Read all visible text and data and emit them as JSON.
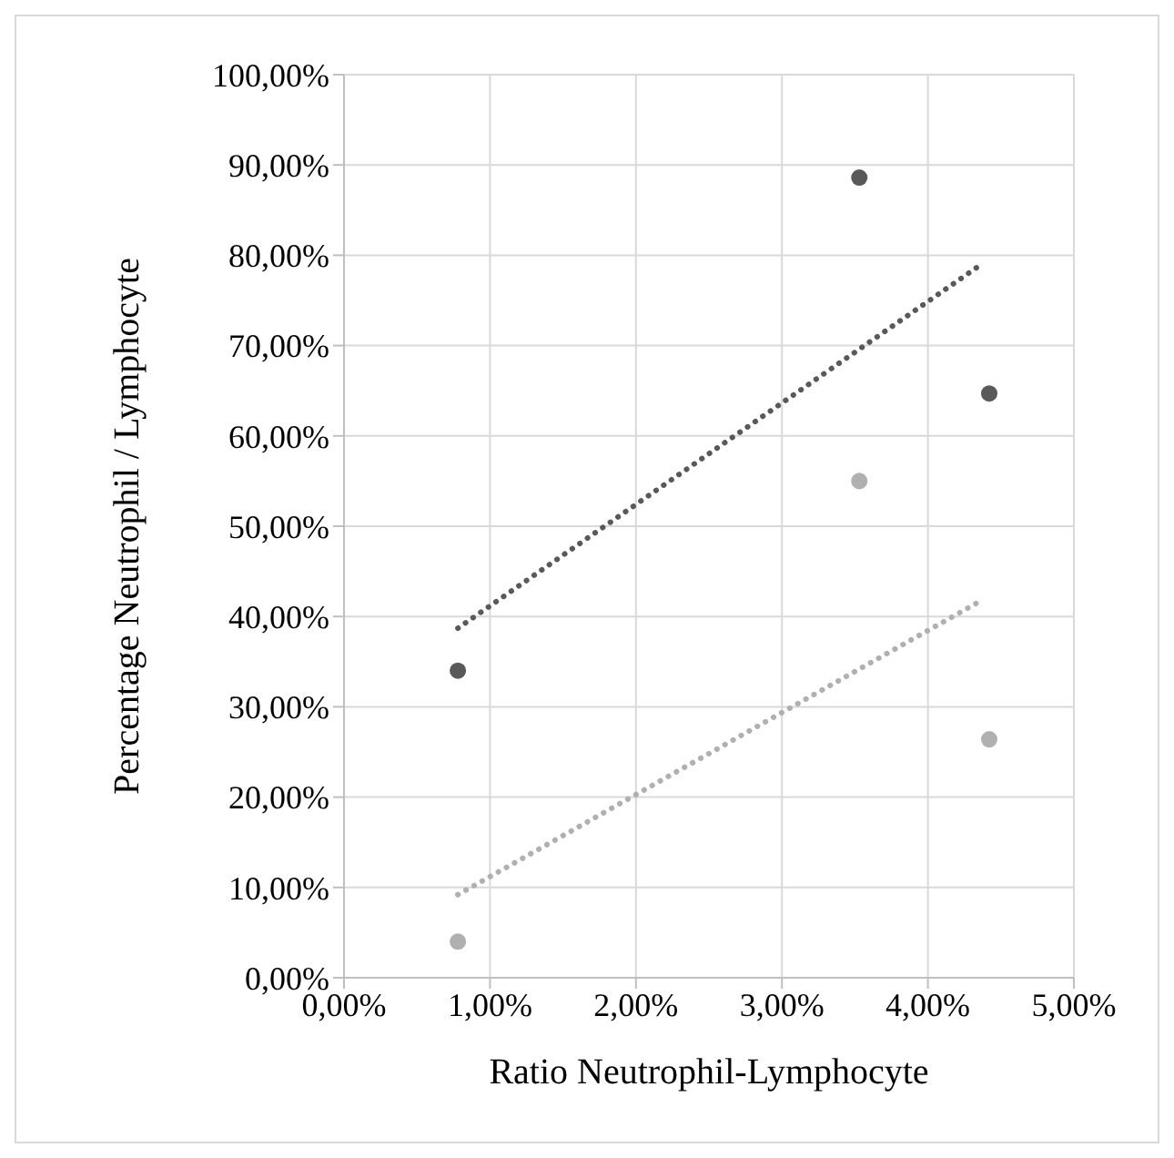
{
  "chart_data": {
    "type": "scatter",
    "xlabel": "Ratio Neutrophil-Lymphocyte",
    "ylabel": "Percentage Neutrophil / Lymphocyte",
    "x": [
      0.78,
      3.53,
      4.42
    ],
    "series": [
      {
        "color": "#595959",
        "marker": "circle",
        "values": [
          34.0,
          88.6,
          64.7
        ]
      },
      {
        "color": "#b0b0b0",
        "marker": "circle",
        "values": [
          4.0,
          55.0,
          26.4
        ]
      },
      {
        "type": "line",
        "color": "#595959",
        "line_style": "dotted",
        "x": [
          0.78,
          4.34
        ],
        "values": [
          38.7,
          78.7
        ]
      },
      {
        "type": "line",
        "color": "#b0b0b0",
        "line_style": "dotted",
        "x": [
          0.78,
          4.38
        ],
        "values": [
          9.2,
          41.9
        ]
      }
    ],
    "xlim": [
      0,
      5
    ],
    "xticks": [
      {
        "value": 0,
        "label": "0,00%"
      },
      {
        "value": 1,
        "label": "1,00%"
      },
      {
        "value": 2,
        "label": "2,00%"
      },
      {
        "value": 3,
        "label": "3,00%"
      },
      {
        "value": 4,
        "label": "4,00%"
      },
      {
        "value": 5,
        "label": "5,00%"
      }
    ],
    "ylim": [
      0,
      100
    ],
    "yticks": [
      {
        "value": 0,
        "label": "0,00%"
      },
      {
        "value": 10,
        "label": "10,00%"
      },
      {
        "value": 20,
        "label": "20,00%"
      },
      {
        "value": 30,
        "label": "30,00%"
      },
      {
        "value": 40,
        "label": "40,00%"
      },
      {
        "value": 50,
        "label": "50,00%"
      },
      {
        "value": 60,
        "label": "60,00%"
      },
      {
        "value": 70,
        "label": "70,00%"
      },
      {
        "value": 80,
        "label": "80,00%"
      },
      {
        "value": 90,
        "label": "90,00%"
      },
      {
        "value": 100,
        "label": "100,00%"
      }
    ],
    "grid": true
  }
}
